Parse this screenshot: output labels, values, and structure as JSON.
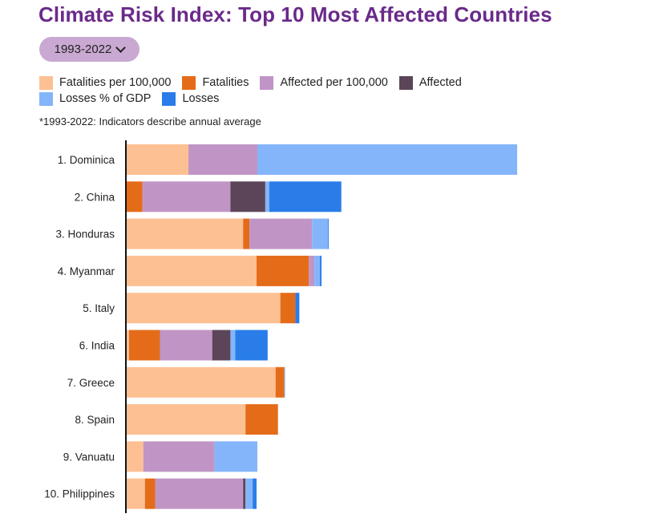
{
  "title": "Climate Risk Index: Top 10 Most Affected Countries",
  "period_selector": {
    "label": "1993-2022",
    "icon": "chevron-down-icon"
  },
  "note": "*1993-2022: Indicators describe  annual average",
  "chart_data": {
    "type": "bar",
    "orientation": "horizontal",
    "stacked": true,
    "categories": [
      "1. Dominica",
      "2. China",
      "3. Honduras",
      "4. Myanmar",
      "5. Italy",
      "6. India",
      "7. Greece",
      "8. Spain",
      "9. Vanuatu",
      "10. Philippines"
    ],
    "series": [
      {
        "name": "Fatalities per 100,000",
        "color": "#fdc093",
        "values": [
          79,
          0,
          148,
          165,
          195,
          4,
          189,
          151,
          22,
          24
        ]
      },
      {
        "name": "Fatalities",
        "color": "#e46c19",
        "values": [
          0,
          21,
          8,
          66,
          19,
          39,
          11,
          41,
          0,
          13
        ]
      },
      {
        "name": "Affected per 100,000",
        "color": "#c095c5",
        "values": [
          87,
          111,
          79,
          7,
          0,
          66,
          0,
          0,
          90,
          111
        ]
      },
      {
        "name": "Affected",
        "color": "#5c4559",
        "values": [
          0,
          44,
          0,
          0,
          0,
          23,
          0,
          0,
          0,
          3
        ]
      },
      {
        "name": "Losses % of GDP",
        "color": "#84b5fb",
        "values": [
          328,
          5,
          20,
          7,
          0,
          6,
          1,
          0,
          54,
          9
        ]
      },
      {
        "name": "Losses",
        "color": "#2a7de8",
        "values": [
          0,
          91,
          1,
          2,
          5,
          41,
          0,
          0,
          0,
          5
        ]
      }
    ],
    "xlim": [
      0,
      500
    ],
    "grid": false,
    "legend_position": "top"
  }
}
